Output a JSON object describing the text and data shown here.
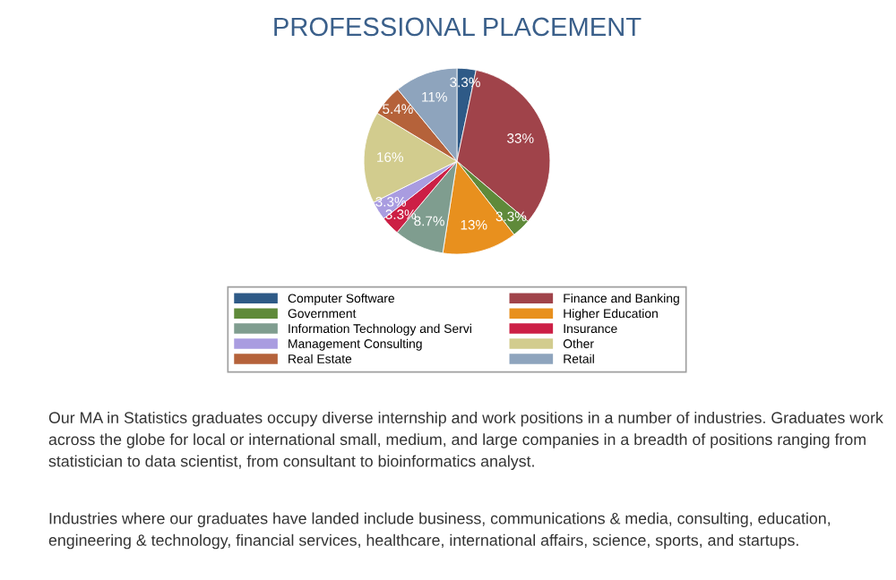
{
  "chart_data": {
    "type": "pie",
    "title": "PROFESSIONAL PLACEMENT",
    "categories": [
      "Computer Software",
      "Finance and Banking",
      "Government",
      "Higher Education",
      "Information Technology and Servi",
      "Insurance",
      "Management Consulting",
      "Other",
      "Real Estate",
      "Retail"
    ],
    "values": [
      3.3,
      33,
      3.3,
      13,
      8.7,
      3.3,
      3.3,
      16,
      5.4,
      11
    ],
    "value_labels": [
      "3.3%",
      "33%",
      "3.3%",
      "13%",
      "8.7%",
      "3.3%",
      "3.3%",
      "16%",
      "5.4%",
      "11%"
    ],
    "colors": [
      "#2e5a87",
      "#a0434a",
      "#5f8a3a",
      "#e8901e",
      "#7f9d8f",
      "#cc1f45",
      "#a99ce0",
      "#d2cc8e",
      "#b5623a",
      "#8ea4bd"
    ],
    "legend": "bottom",
    "annotations": [
      "Our MA in Statistics graduates occupy diverse internship and work positions in a number of industries. Graduates work across the globe for local or international small, medium, and large companies in a breadth of positions ranging from statistician to data scientist, from consultant to bioinformatics analyst.",
      "Industries where our graduates have landed include business, communications & media, consulting, education, engineering & technology, financial services, healthcare, international affairs, science, sports, and startups."
    ]
  }
}
